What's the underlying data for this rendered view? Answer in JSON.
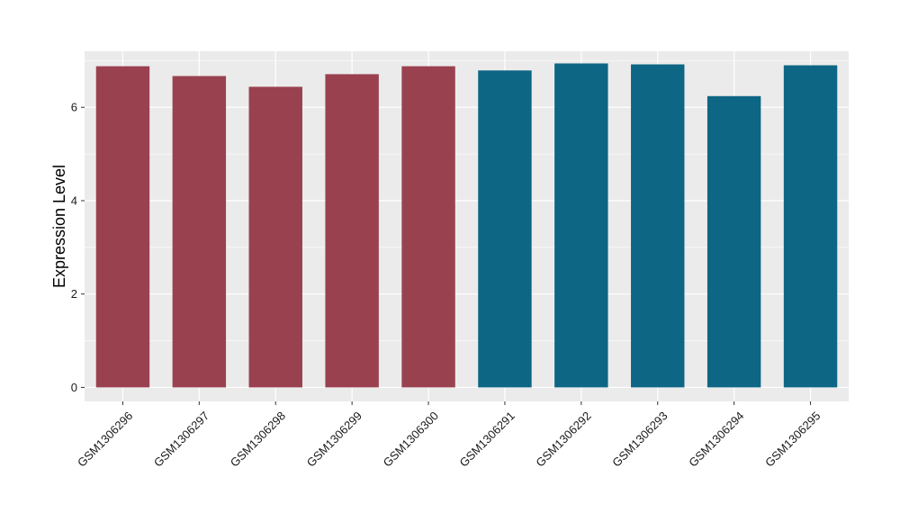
{
  "chart_data": {
    "type": "bar",
    "categories": [
      "GSM1306296",
      "GSM1306297",
      "GSM1306298",
      "GSM1306299",
      "GSM1306300",
      "GSM1306291",
      "GSM1306292",
      "GSM1306293",
      "GSM1306294",
      "GSM1306295"
    ],
    "values": [
      6.88,
      6.67,
      6.44,
      6.71,
      6.88,
      6.79,
      6.94,
      6.92,
      6.24,
      6.9
    ],
    "bar_colors": [
      "#9a4150",
      "#9a4150",
      "#9a4150",
      "#9a4150",
      "#9a4150",
      "#0e6685",
      "#0e6685",
      "#0e6685",
      "#0e6685",
      "#0e6685"
    ],
    "ylabel": "Expression Level",
    "xlabel": "",
    "title": "",
    "ylim": [
      -0.3,
      7.2
    ],
    "y_ticks": [
      0,
      2,
      4,
      6
    ],
    "grid": true,
    "legend": "none",
    "panel_color": "#ebebeb",
    "grid_color": "#ffffff"
  }
}
